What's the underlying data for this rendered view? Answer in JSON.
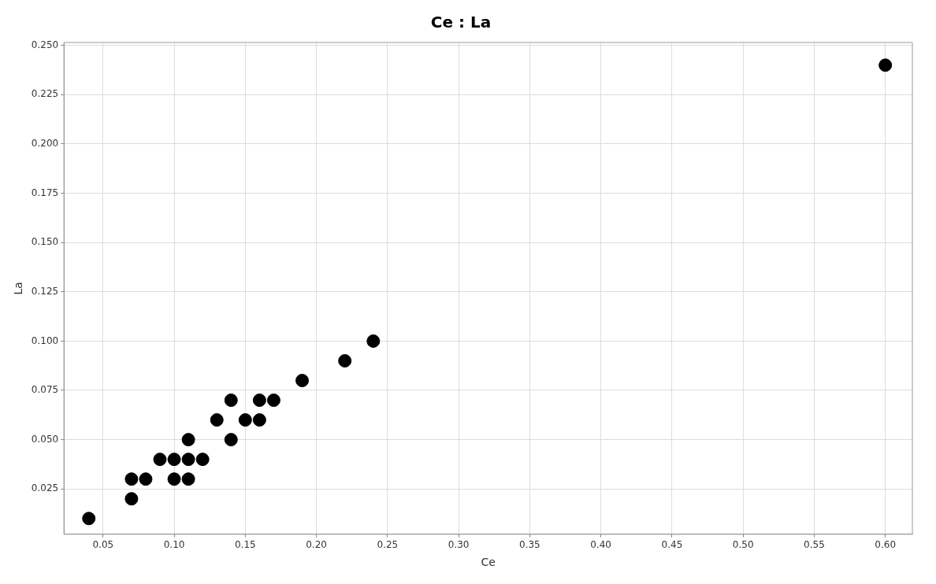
{
  "chart_data": {
    "type": "scatter",
    "title": "Ce : La",
    "xlabel": "Ce",
    "ylabel": "La",
    "x": [
      0.04,
      0.07,
      0.07,
      0.08,
      0.09,
      0.1,
      0.1,
      0.11,
      0.11,
      0.11,
      0.12,
      0.13,
      0.14,
      0.14,
      0.15,
      0.16,
      0.16,
      0.17,
      0.19,
      0.22,
      0.24,
      0.6
    ],
    "values": [
      0.01,
      0.02,
      0.03,
      0.03,
      0.04,
      0.04,
      0.03,
      0.05,
      0.04,
      0.03,
      0.04,
      0.06,
      0.07,
      0.05,
      0.06,
      0.07,
      0.06,
      0.07,
      0.08,
      0.09,
      0.1,
      0.24
    ],
    "color": "#000000",
    "marker": "circle",
    "grid": true,
    "legend": false,
    "xlim": [
      0.0225,
      0.619
    ],
    "ylim": [
      0.002,
      0.2515
    ],
    "xticks": [
      {
        "value": 0.05,
        "label": "0.05"
      },
      {
        "value": 0.1,
        "label": "0.10"
      },
      {
        "value": 0.15,
        "label": "0.15"
      },
      {
        "value": 0.2,
        "label": "0.20"
      },
      {
        "value": 0.25,
        "label": "0.25"
      },
      {
        "value": 0.3,
        "label": "0.30"
      },
      {
        "value": 0.35,
        "label": "0.35"
      },
      {
        "value": 0.4,
        "label": "0.40"
      },
      {
        "value": 0.45,
        "label": "0.45"
      },
      {
        "value": 0.5,
        "label": "0.50"
      },
      {
        "value": 0.55,
        "label": "0.55"
      },
      {
        "value": 0.6,
        "label": "0.60"
      }
    ],
    "yticks": [
      {
        "value": 0.025,
        "label": "0.025"
      },
      {
        "value": 0.05,
        "label": "0.050"
      },
      {
        "value": 0.075,
        "label": "0.075"
      },
      {
        "value": 0.1,
        "label": "0.100"
      },
      {
        "value": 0.125,
        "label": "0.125"
      },
      {
        "value": 0.15,
        "label": "0.150"
      },
      {
        "value": 0.175,
        "label": "0.175"
      },
      {
        "value": 0.2,
        "label": "0.200"
      },
      {
        "value": 0.225,
        "label": "0.225"
      },
      {
        "value": 0.25,
        "label": "0.250"
      }
    ]
  }
}
